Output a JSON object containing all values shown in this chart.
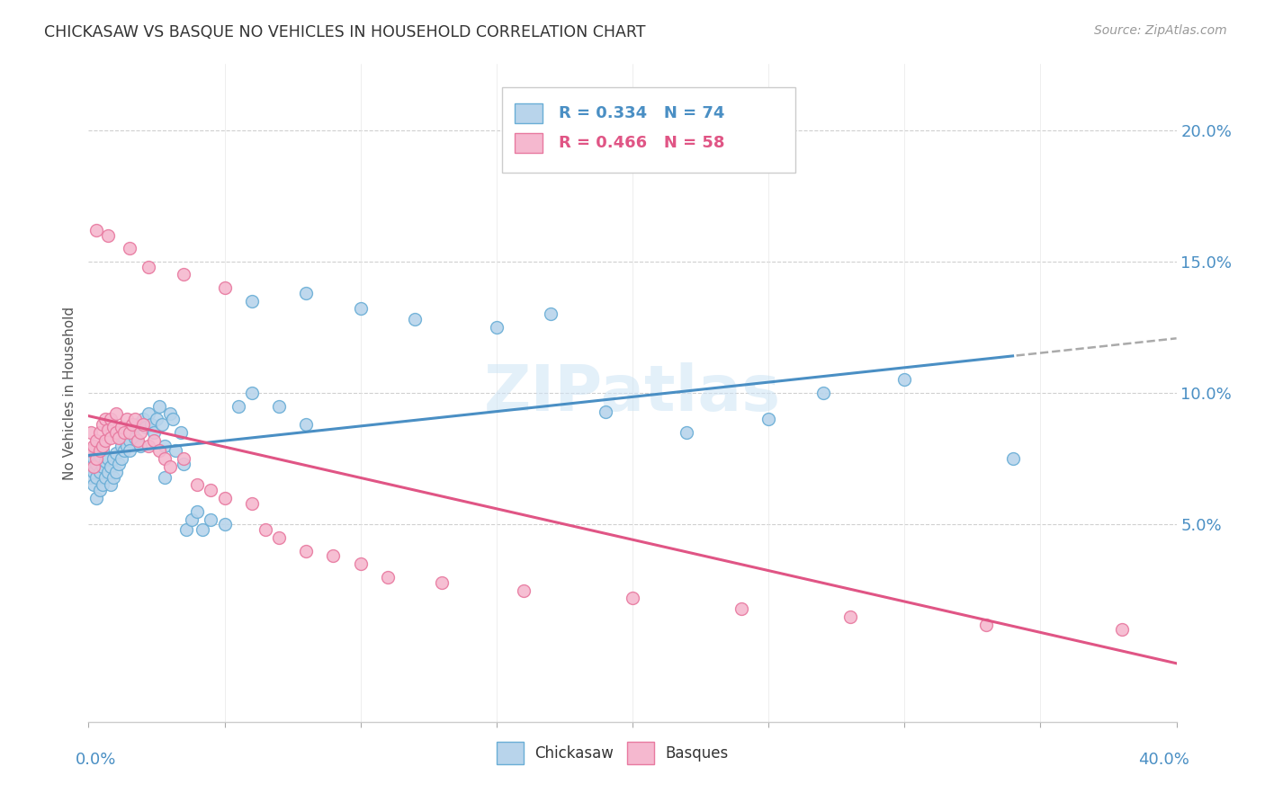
{
  "title": "CHICKASAW VS BASQUE NO VEHICLES IN HOUSEHOLD CORRELATION CHART",
  "source": "Source: ZipAtlas.com",
  "ylabel": "No Vehicles in Household",
  "legend_label_blue": "Chickasaw",
  "legend_label_pink": "Basques",
  "blue_color": "#b8d4eb",
  "pink_color": "#f5b8cf",
  "blue_edge_color": "#6aaed6",
  "pink_edge_color": "#e87aa0",
  "blue_line_color": "#4a8fc4",
  "pink_line_color": "#e05585",
  "right_ytick_vals": [
    0.05,
    0.1,
    0.15,
    0.2
  ],
  "right_ytick_labels": [
    "5.0%",
    "10.0%",
    "15.0%",
    "20.0%"
  ],
  "xlim": [
    0.0,
    0.4
  ],
  "ylim": [
    -0.025,
    0.225
  ],
  "blue_x": [
    0.001,
    0.001,
    0.001,
    0.002,
    0.002,
    0.002,
    0.003,
    0.003,
    0.003,
    0.004,
    0.004,
    0.004,
    0.005,
    0.005,
    0.005,
    0.006,
    0.006,
    0.007,
    0.007,
    0.008,
    0.008,
    0.009,
    0.009,
    0.01,
    0.01,
    0.011,
    0.012,
    0.012,
    0.013,
    0.013,
    0.014,
    0.015,
    0.015,
    0.016,
    0.017,
    0.018,
    0.019,
    0.02,
    0.021,
    0.022,
    0.023,
    0.024,
    0.025,
    0.026,
    0.027,
    0.028,
    0.03,
    0.031,
    0.032,
    0.034,
    0.036,
    0.038,
    0.04,
    0.042,
    0.045,
    0.05,
    0.055,
    0.06,
    0.07,
    0.08,
    0.1,
    0.12,
    0.15,
    0.17,
    0.19,
    0.22,
    0.25,
    0.27,
    0.3,
    0.34,
    0.035,
    0.028,
    0.06,
    0.08
  ],
  "blue_y": [
    0.068,
    0.072,
    0.078,
    0.065,
    0.07,
    0.075,
    0.06,
    0.068,
    0.073,
    0.063,
    0.07,
    0.076,
    0.065,
    0.072,
    0.078,
    0.068,
    0.074,
    0.07,
    0.075,
    0.065,
    0.072,
    0.068,
    0.075,
    0.07,
    0.077,
    0.073,
    0.075,
    0.08,
    0.078,
    0.083,
    0.08,
    0.082,
    0.078,
    0.085,
    0.083,
    0.088,
    0.08,
    0.09,
    0.087,
    0.092,
    0.088,
    0.085,
    0.09,
    0.095,
    0.088,
    0.08,
    0.092,
    0.09,
    0.078,
    0.085,
    0.048,
    0.052,
    0.055,
    0.048,
    0.052,
    0.05,
    0.095,
    0.1,
    0.095,
    0.088,
    0.132,
    0.128,
    0.125,
    0.13,
    0.093,
    0.085,
    0.09,
    0.1,
    0.105,
    0.075,
    0.073,
    0.068,
    0.135,
    0.138
  ],
  "pink_x": [
    0.001,
    0.001,
    0.002,
    0.002,
    0.003,
    0.003,
    0.004,
    0.004,
    0.005,
    0.005,
    0.006,
    0.006,
    0.007,
    0.008,
    0.008,
    0.009,
    0.01,
    0.01,
    0.011,
    0.012,
    0.013,
    0.014,
    0.015,
    0.016,
    0.017,
    0.018,
    0.019,
    0.02,
    0.022,
    0.024,
    0.026,
    0.028,
    0.03,
    0.035,
    0.04,
    0.045,
    0.05,
    0.06,
    0.065,
    0.07,
    0.08,
    0.09,
    0.1,
    0.11,
    0.13,
    0.16,
    0.2,
    0.24,
    0.28,
    0.33,
    0.38,
    0.003,
    0.007,
    0.015,
    0.022,
    0.035,
    0.05,
    0.2
  ],
  "pink_y": [
    0.078,
    0.085,
    0.072,
    0.08,
    0.075,
    0.082,
    0.078,
    0.085,
    0.08,
    0.088,
    0.082,
    0.09,
    0.086,
    0.083,
    0.09,
    0.087,
    0.085,
    0.092,
    0.083,
    0.087,
    0.085,
    0.09,
    0.085,
    0.088,
    0.09,
    0.082,
    0.085,
    0.088,
    0.08,
    0.082,
    0.078,
    0.075,
    0.072,
    0.075,
    0.065,
    0.063,
    0.06,
    0.058,
    0.048,
    0.045,
    0.04,
    0.038,
    0.035,
    0.03,
    0.028,
    0.025,
    0.022,
    0.018,
    0.015,
    0.012,
    0.01,
    0.162,
    0.16,
    0.155,
    0.148,
    0.145,
    0.14,
    0.202
  ]
}
